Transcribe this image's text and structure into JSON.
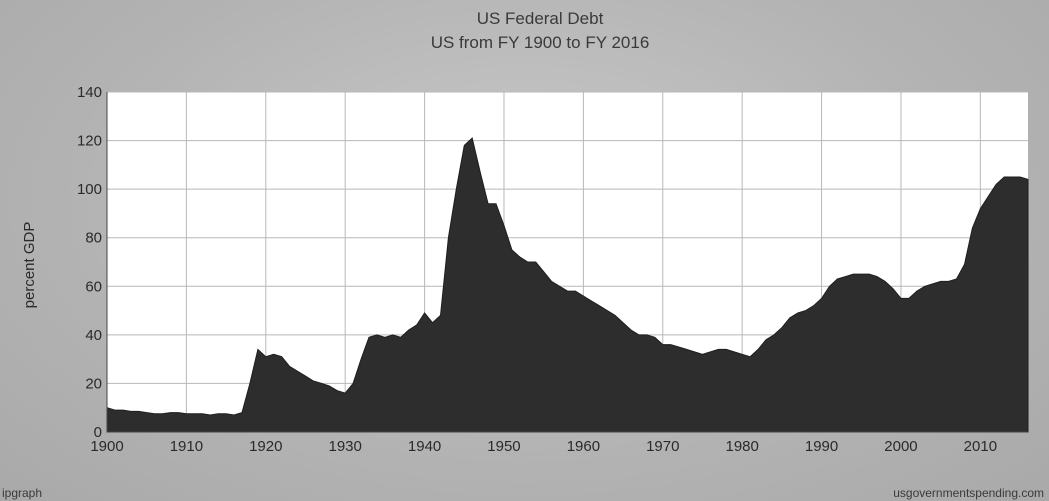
{
  "chart_data": {
    "type": "area",
    "title": "US Federal Debt",
    "subtitle": "US from FY 1900 to FY 2016",
    "xlabel": "",
    "ylabel": "percent GDP",
    "xlim": [
      1900,
      2016
    ],
    "ylim": [
      0,
      140
    ],
    "x_ticks": [
      1900,
      1910,
      1920,
      1930,
      1940,
      1950,
      1960,
      1970,
      1980,
      1990,
      2000,
      2010
    ],
    "y_ticks": [
      0,
      20,
      40,
      60,
      80,
      100,
      120,
      140
    ],
    "grid": true,
    "fill_color": "#2d2d2d",
    "plot_background": "#ffffff",
    "series": [
      {
        "x": [
          1900,
          1901,
          1902,
          1903,
          1904,
          1905,
          1906,
          1907,
          1908,
          1909,
          1910,
          1911,
          1912,
          1913,
          1914,
          1915,
          1916,
          1917,
          1918,
          1919,
          1920,
          1921,
          1922,
          1923,
          1924,
          1925,
          1926,
          1927,
          1928,
          1929,
          1930,
          1931,
          1932,
          1933,
          1934,
          1935,
          1936,
          1937,
          1938,
          1939,
          1940,
          1941,
          1942,
          1943,
          1944,
          1945,
          1946,
          1947,
          1948,
          1949,
          1950,
          1951,
          1952,
          1953,
          1954,
          1955,
          1956,
          1957,
          1958,
          1959,
          1960,
          1961,
          1962,
          1963,
          1964,
          1965,
          1966,
          1967,
          1968,
          1969,
          1970,
          1971,
          1972,
          1973,
          1974,
          1975,
          1976,
          1977,
          1978,
          1979,
          1980,
          1981,
          1982,
          1983,
          1984,
          1985,
          1986,
          1987,
          1988,
          1989,
          1990,
          1991,
          1992,
          1993,
          1994,
          1995,
          1996,
          1997,
          1998,
          1999,
          2000,
          2001,
          2002,
          2003,
          2004,
          2005,
          2006,
          2007,
          2008,
          2009,
          2010,
          2011,
          2012,
          2013,
          2014,
          2015,
          2016
        ],
        "values": [
          10,
          9,
          9,
          8.5,
          8.5,
          8,
          7.5,
          7.5,
          8,
          8,
          7.5,
          7.5,
          7.5,
          7,
          7.5,
          7.5,
          7,
          8,
          20,
          34,
          31,
          32,
          31,
          27,
          25,
          23,
          21,
          20,
          19,
          17,
          16,
          20,
          30,
          39,
          40,
          39,
          40,
          39,
          42,
          44,
          49,
          45,
          48,
          80,
          100,
          118,
          121,
          107,
          94,
          94,
          85,
          75,
          72,
          70,
          70,
          66,
          62,
          60,
          58,
          58,
          56,
          54,
          52,
          50,
          48,
          45,
          42,
          40,
          40,
          39,
          36,
          36,
          35,
          34,
          33,
          32,
          33,
          34,
          34,
          33,
          32,
          31,
          34,
          38,
          40,
          43,
          47,
          49,
          50,
          52,
          55,
          60,
          63,
          64,
          65,
          65,
          65,
          64,
          62,
          59,
          55,
          55,
          58,
          60,
          61,
          62,
          62,
          63,
          69,
          84,
          92,
          97,
          102,
          105,
          105,
          105,
          104
        ]
      }
    ]
  },
  "footer": {
    "left": "ipgraph",
    "right": "usgovernmentspending.com"
  }
}
